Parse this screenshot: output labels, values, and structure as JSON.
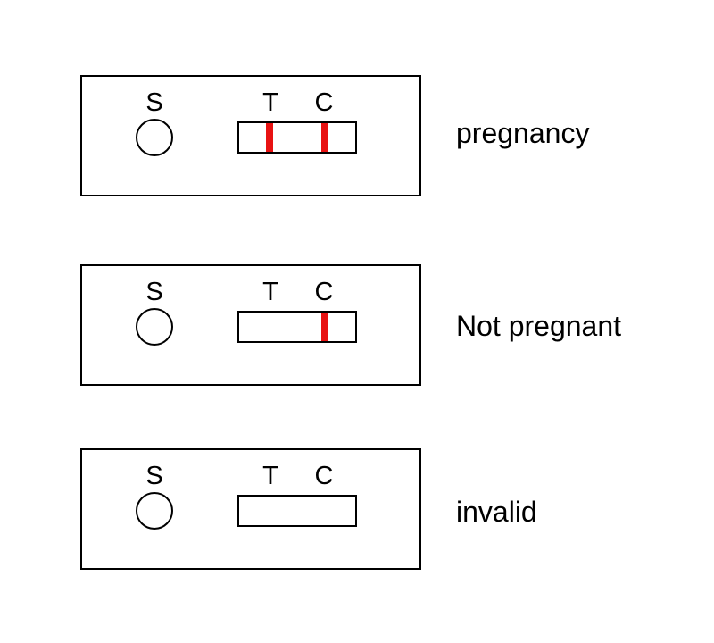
{
  "labels": {
    "sample": "S",
    "test": "T",
    "control": "C"
  },
  "colors": {
    "line": "#e81212",
    "outline": "#000000"
  },
  "panels": [
    {
      "result": "pregnancy",
      "test_line": true,
      "control_line": true
    },
    {
      "result": "Not pregnant",
      "test_line": false,
      "control_line": true
    },
    {
      "result": "invalid",
      "test_line": false,
      "control_line": false
    }
  ]
}
